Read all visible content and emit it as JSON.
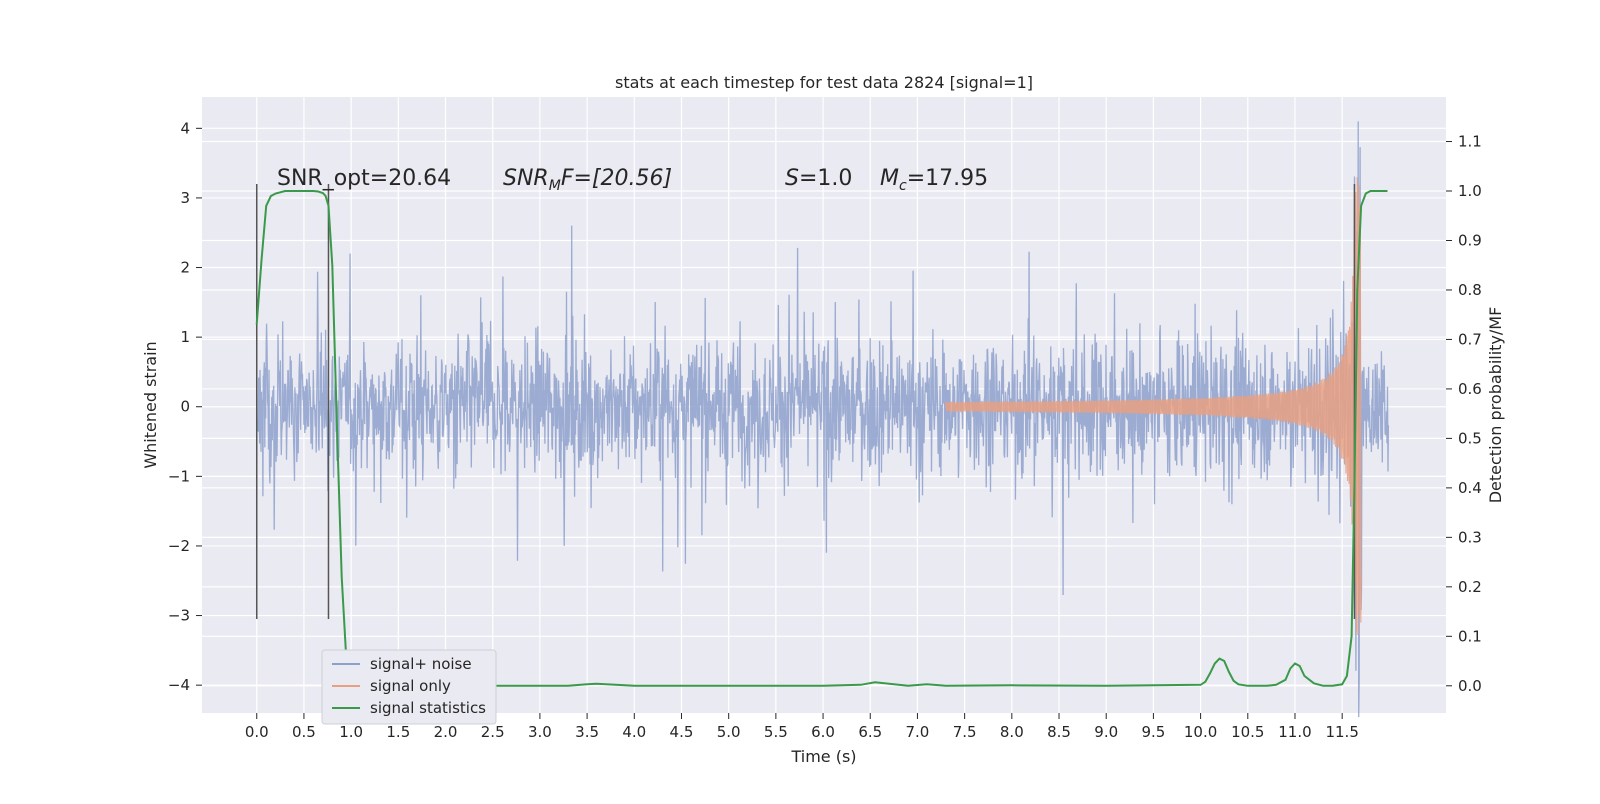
{
  "chart_data": {
    "type": "line",
    "title": "stats at each timestep for test data 2824 [signal=1]",
    "xlabel": "Time (s)",
    "ylabel": "Whitened strain",
    "y2label": "Detection probability/MF",
    "xlim": [
      -0.58,
      12.6
    ],
    "ylim": [
      -4.4,
      4.45
    ],
    "y2lim": [
      -0.055,
      1.19
    ],
    "grid": true,
    "legend_position": "lower-left",
    "x_ticks": [
      "0.0",
      "0.5",
      "1.0",
      "1.5",
      "2.0",
      "2.5",
      "3.0",
      "3.5",
      "4.0",
      "4.5",
      "5.0",
      "5.5",
      "6.0",
      "6.5",
      "7.0",
      "7.5",
      "8.0",
      "8.5",
      "9.0",
      "9.5",
      "10.0",
      "10.5",
      "11.0",
      "11.5"
    ],
    "y_ticks": [
      "4",
      "3",
      "2",
      "1",
      "0",
      "−1",
      "−2",
      "−3",
      "−4"
    ],
    "y2_ticks": [
      "1.1",
      "1.0",
      "0.9",
      "0.8",
      "0.7",
      "0.6",
      "0.5",
      "0.4",
      "0.3",
      "0.2",
      "0.1",
      "0.0"
    ],
    "annotations": {
      "snr_opt": "SNR_opt=20.64",
      "snr_mf_main": "SNR",
      "snr_mf_sub": "M",
      "snr_mf_rest": "F=[20.56]",
      "s_var": "S",
      "s_rest": "=1.0",
      "mc_var": "M",
      "mc_sub": "c",
      "mc_rest": "=17.95"
    },
    "colors": {
      "signal_noise": "#8da0cb",
      "signal_only": "#e8a083",
      "signal_statistics": "#3a9a4a",
      "background": "#eaeaf2",
      "grid": "#ffffff",
      "vline": "#555555"
    },
    "series": [
      {
        "name": "signal+ noise",
        "axis": "left",
        "description_values": "whitened strain noise, approx amplitude band ±1.3 with spikes up to ±3",
        "t_range": [
          0.0,
          11.99
        ],
        "envelope": [
          -1.3,
          1.3
        ],
        "peak_max": 4.1,
        "peak_min": -3.9,
        "peak_time": 11.67
      },
      {
        "name": "signal only",
        "axis": "left",
        "t_range": [
          7.3,
          11.7
        ],
        "amplitude_start": 0.02,
        "amplitude_end": 3.3,
        "merger_time": 11.67
      },
      {
        "name": "signal statistics",
        "axis": "right",
        "x": [
          0.0,
          0.05,
          0.1,
          0.15,
          0.2,
          0.3,
          0.4,
          0.5,
          0.6,
          0.65,
          0.7,
          0.73,
          0.76,
          0.8,
          0.85,
          0.9,
          0.95,
          1.0,
          1.1,
          1.5,
          2.0,
          3.0,
          3.3,
          3.5,
          3.6,
          3.7,
          4.0,
          5.0,
          6.0,
          6.4,
          6.55,
          6.7,
          6.9,
          7.1,
          7.3,
          8.0,
          9.0,
          10.0,
          10.05,
          10.1,
          10.15,
          10.2,
          10.25,
          10.3,
          10.35,
          10.4,
          10.5,
          10.7,
          10.8,
          10.9,
          10.95,
          11.0,
          11.05,
          11.1,
          11.2,
          11.3,
          11.4,
          11.5,
          11.55,
          11.6,
          11.63,
          11.66,
          11.7,
          11.75,
          11.8,
          11.9,
          11.98
        ],
        "y": [
          0.73,
          0.86,
          0.97,
          0.99,
          0.995,
          1.0,
          1.0,
          1.0,
          1.0,
          0.999,
          0.996,
          0.99,
          0.97,
          0.85,
          0.52,
          0.22,
          0.05,
          0.01,
          0.0,
          0.0,
          0.0,
          0.0,
          0.0,
          0.003,
          0.004,
          0.003,
          0.0,
          0.0,
          0.0,
          0.002,
          0.007,
          0.004,
          0.0,
          0.003,
          0.0,
          0.001,
          0.0,
          0.002,
          0.008,
          0.025,
          0.045,
          0.055,
          0.05,
          0.028,
          0.01,
          0.003,
          0.0,
          0.0,
          0.002,
          0.012,
          0.035,
          0.045,
          0.04,
          0.02,
          0.005,
          0.0,
          0.0,
          0.003,
          0.02,
          0.1,
          0.4,
          0.8,
          0.97,
          0.995,
          1.0,
          1.0,
          1.0
        ]
      }
    ],
    "vertical_lines": [
      {
        "x": 0.0,
        "y_from": -3.05,
        "y_to": 3.2
      },
      {
        "x": 0.76,
        "y_from": -3.05,
        "y_to": 3.2
      },
      {
        "x": 11.63,
        "y_from": -3.05,
        "y_to": 3.2
      }
    ]
  }
}
